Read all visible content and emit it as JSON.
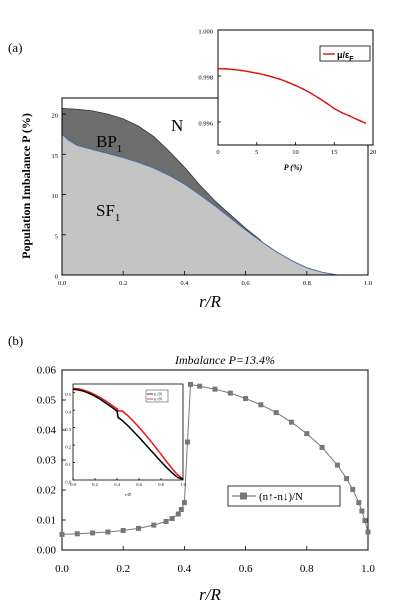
{
  "chart_data": [
    {
      "panel": "(a)",
      "type": "area",
      "ylabel": "Population Imbalance P (%)",
      "xlabel": "r/R",
      "xlim": [
        0,
        1
      ],
      "ylim": [
        0,
        22
      ],
      "xticks": [
        "0.0",
        "0.2",
        "0.4",
        "0.6",
        "0.8",
        "1.0"
      ],
      "yticks": [
        "0",
        "5",
        "10",
        "15",
        "20"
      ],
      "region_labels": {
        "bp": "BP",
        "bp_sub": "1",
        "sf": "SF",
        "sf_sub": "1",
        "n": "N"
      },
      "series": [
        {
          "name": "BP1",
          "x": [
            0.0,
            0.05,
            0.1,
            0.15,
            0.2,
            0.25,
            0.3,
            0.35,
            0.4,
            0.45,
            0.5,
            0.55,
            0.6,
            0.65
          ],
          "values": [
            20.7,
            20.6,
            20.4,
            20.0,
            19.4,
            18.5,
            17.2,
            15.4,
            13.4,
            11.2,
            9.2,
            7.5,
            5.8,
            4.3
          ]
        },
        {
          "name": "SF1",
          "x": [
            0.0,
            0.02,
            0.05,
            0.1,
            0.15,
            0.2,
            0.25,
            0.3,
            0.35,
            0.4,
            0.45,
            0.5,
            0.55,
            0.6,
            0.65,
            0.7,
            0.75,
            0.8,
            0.85,
            0.9
          ],
          "values": [
            17.5,
            16.8,
            16.1,
            15.6,
            15.1,
            14.6,
            14.0,
            13.3,
            12.4,
            11.3,
            10.0,
            8.6,
            7.1,
            5.6,
            4.2,
            2.9,
            1.8,
            0.9,
            0.35,
            0.0
          ]
        }
      ]
    },
    {
      "panel": "(a) inset",
      "type": "line",
      "xlabel": "P (%)",
      "xlim": [
        0,
        20
      ],
      "ylim": [
        0.995,
        1.0
      ],
      "xticks": [
        "0",
        "5",
        "10",
        "15",
        "20"
      ],
      "yticks": [
        "0.996",
        "0.998",
        "1.000"
      ],
      "legend": "μ/ε",
      "legend_sub": "F",
      "series": [
        {
          "name": "μ/εF",
          "x": [
            0,
            1,
            2,
            3,
            4,
            5,
            6,
            7,
            8,
            9,
            10,
            11,
            12,
            13,
            14,
            15,
            16,
            17,
            18,
            19
          ],
          "values": [
            0.99832,
            0.99831,
            0.99828,
            0.99824,
            0.99819,
            0.99812,
            0.99805,
            0.99796,
            0.99786,
            0.99773,
            0.99759,
            0.99743,
            0.99725,
            0.99704,
            0.99682,
            0.99658,
            0.9964,
            0.99626,
            0.9961,
            0.99596
          ]
        }
      ]
    },
    {
      "panel": "(b)",
      "type": "scatter",
      "annotation": "Imbalance P=13.4%",
      "xlabel": "r/R",
      "xlim": [
        0,
        1
      ],
      "ylim": [
        0,
        0.06
      ],
      "xticks": [
        "0.0",
        "0.2",
        "0.4",
        "0.6",
        "0.8",
        "1.0"
      ],
      "yticks": [
        "0.00",
        "0.01",
        "0.02",
        "0.03",
        "0.04",
        "0.05",
        "0.06"
      ],
      "legend": "(n↑-n↓)/N",
      "series": [
        {
          "name": "(n↑-n↓)/N",
          "x": [
            0.0,
            0.05,
            0.1,
            0.15,
            0.2,
            0.25,
            0.3,
            0.34,
            0.36,
            0.38,
            0.39,
            0.4,
            0.41,
            0.42,
            0.45,
            0.5,
            0.55,
            0.6,
            0.65,
            0.7,
            0.75,
            0.8,
            0.85,
            0.9,
            0.93,
            0.95,
            0.97,
            0.98,
            0.99,
            1.0
          ],
          "values": [
            0.0052,
            0.0054,
            0.0057,
            0.006,
            0.0065,
            0.0072,
            0.0083,
            0.0095,
            0.0105,
            0.012,
            0.0135,
            0.0158,
            0.036,
            0.0552,
            0.0546,
            0.0536,
            0.0523,
            0.0505,
            0.0484,
            0.0458,
            0.0426,
            0.0388,
            0.0342,
            0.0283,
            0.0238,
            0.0202,
            0.0158,
            0.013,
            0.0098,
            0.006
          ]
        }
      ]
    },
    {
      "panel": "(b) inset",
      "type": "line",
      "xlabel": "r/R",
      "xlim": [
        0,
        1
      ],
      "ylim": [
        0,
        0.055
      ],
      "xticks": [
        "0.0",
        "0.2",
        "0.4",
        "0.6",
        "0.8",
        "1.0"
      ],
      "yticks": [
        "0.0",
        "0.1",
        "0.2",
        "0.3",
        "0.4",
        "0.5"
      ],
      "series": [
        {
          "name": "n↓/N",
          "x": [
            0.0,
            0.05,
            0.1,
            0.15,
            0.2,
            0.25,
            0.3,
            0.35,
            0.4,
            0.41,
            0.45,
            0.5,
            0.55,
            0.6,
            0.65,
            0.7,
            0.75,
            0.8,
            0.85,
            0.9,
            0.95,
            1.0
          ],
          "values": [
            0.052,
            0.0516,
            0.0508,
            0.0496,
            0.048,
            0.0462,
            0.044,
            0.0418,
            0.0395,
            0.0358,
            0.034,
            0.031,
            0.0278,
            0.0245,
            0.021,
            0.0175,
            0.014,
            0.0105,
            0.0072,
            0.0042,
            0.0015,
            0.0003
          ]
        },
        {
          "name": "n↑/N",
          "x": [
            0.0,
            0.05,
            0.1,
            0.15,
            0.2,
            0.25,
            0.3,
            0.35,
            0.4,
            0.41,
            0.45,
            0.5,
            0.55,
            0.6,
            0.65,
            0.7,
            0.75,
            0.8,
            0.85,
            0.9,
            0.95,
            1.0
          ],
          "values": [
            0.0525,
            0.0522,
            0.0514,
            0.0503,
            0.0488,
            0.0471,
            0.0452,
            0.043,
            0.0408,
            0.0395,
            0.0395,
            0.0368,
            0.0336,
            0.0302,
            0.0266,
            0.0228,
            0.0188,
            0.0148,
            0.0106,
            0.0066,
            0.003,
            0.0005
          ]
        }
      ]
    }
  ],
  "colors": {
    "bp_fill": "#6e6e6e",
    "sf_fill": "#c4c4c4",
    "boundary_line": "#4a6ea8",
    "inset_line": "#dd1111",
    "main_b_series": "#777777",
    "inset_b_down": "#000000",
    "inset_b_up": "#ee1111"
  }
}
